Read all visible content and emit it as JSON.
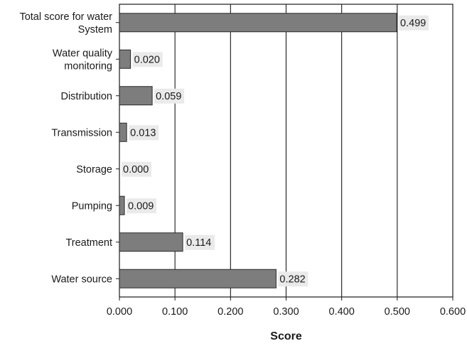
{
  "chart_data": {
    "type": "bar",
    "orientation": "horizontal",
    "categories": [
      "Total score for water System",
      "Water quality monitoring",
      "Distribution",
      "Transmission",
      "Storage",
      "Pumping",
      "Treatment",
      "Water source"
    ],
    "category_lines": [
      [
        "Total score for water",
        "System"
      ],
      [
        "Water quality",
        "monitoring"
      ],
      [
        "Distribution"
      ],
      [
        "Transmission"
      ],
      [
        "Storage"
      ],
      [
        "Pumping"
      ],
      [
        "Treatment"
      ],
      [
        "Water source"
      ]
    ],
    "values": [
      0.499,
      0.02,
      0.059,
      0.013,
      0.0,
      0.009,
      0.114,
      0.282
    ],
    "value_labels": [
      "0.499",
      "0.020",
      "0.059",
      "0.013",
      "0.000",
      "0.009",
      "0.114",
      "0.282"
    ],
    "xlabel": "Score",
    "ylabel": "",
    "xlim": [
      0,
      0.6
    ],
    "xticks": [
      0,
      0.1,
      0.2,
      0.3,
      0.4,
      0.5,
      0.6
    ],
    "xtick_labels": [
      "0.000",
      "0.100",
      "0.200",
      "0.300",
      "0.400",
      "0.500",
      "0.600"
    ],
    "grid": "vertical",
    "legend": "none",
    "colors": {
      "bar": "#7d7d7d",
      "label_bg": "#eaeaea",
      "axis": "#1a1a1a"
    }
  }
}
